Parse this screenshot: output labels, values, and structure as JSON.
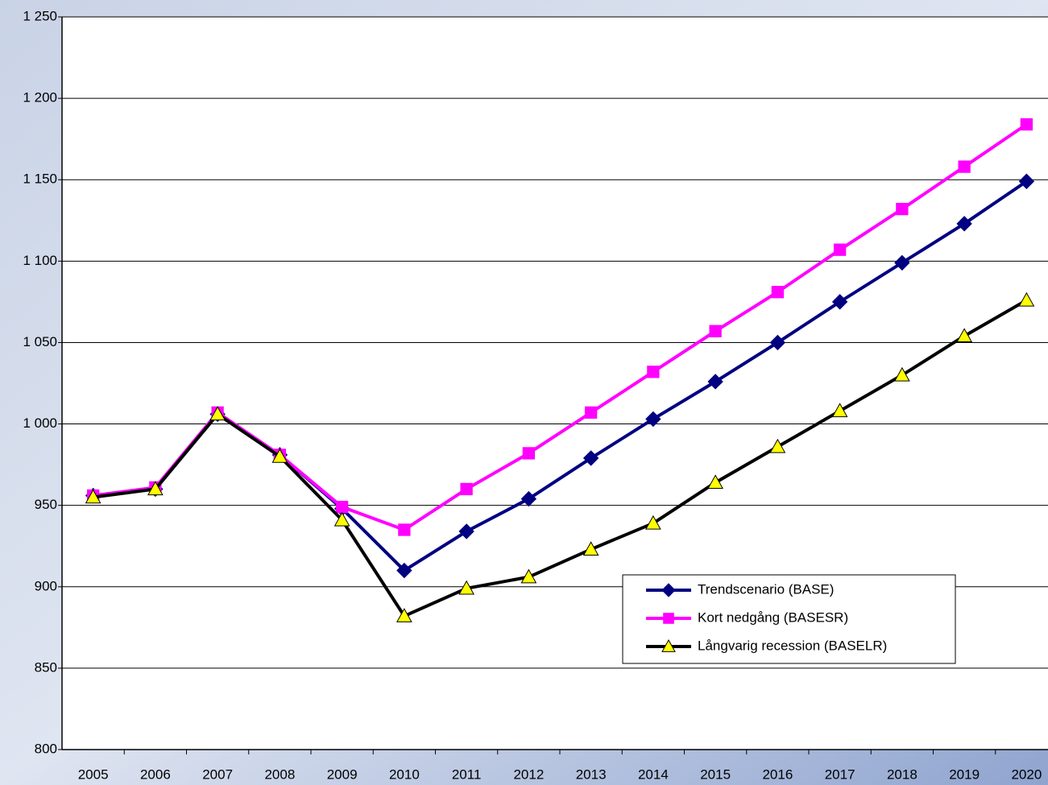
{
  "chart_data": {
    "type": "line",
    "categories": [
      "2005",
      "2006",
      "2007",
      "2008",
      "2009",
      "2010",
      "2011",
      "2012",
      "2013",
      "2014",
      "2015",
      "2016",
      "2017",
      "2018",
      "2019",
      "2020"
    ],
    "series": [
      {
        "name": "Trendscenario (BASE)",
        "color": "#000080",
        "marker": "diamond",
        "marker_color": "#000080",
        "values": [
          956,
          960,
          1006,
          981,
          948,
          910,
          934,
          954,
          979,
          1003,
          1026,
          1050,
          1075,
          1099,
          1123,
          1149
        ]
      },
      {
        "name": "Kort nedgång (BASESR)",
        "color": "#ff00ff",
        "marker": "square",
        "marker_color": "#ff00ff",
        "values": [
          956,
          961,
          1007,
          981,
          949,
          935,
          960,
          982,
          1007,
          1032,
          1057,
          1081,
          1107,
          1132,
          1158,
          1184
        ]
      },
      {
        "name": "Långvarig recession (BASELR)",
        "color": "#000000",
        "marker": "triangle",
        "marker_color": "#ffff00",
        "values": [
          955,
          960,
          1006,
          980,
          941,
          882,
          899,
          906,
          923,
          939,
          964,
          986,
          1008,
          1030,
          1054,
          1076
        ]
      }
    ],
    "ylim": [
      800,
      1250
    ],
    "yticks": [
      800,
      850,
      900,
      950,
      {
        "value": 1000,
        "label": "1 000"
      },
      {
        "value": 1050,
        "label": "1 050"
      },
      {
        "value": 1100,
        "label": "1 100"
      },
      {
        "value": 1150,
        "label": "1 150"
      },
      {
        "value": 1200,
        "label": "1 200"
      },
      {
        "value": 1250,
        "label": "1 250"
      }
    ],
    "grid": true,
    "legend": "lower right"
  }
}
